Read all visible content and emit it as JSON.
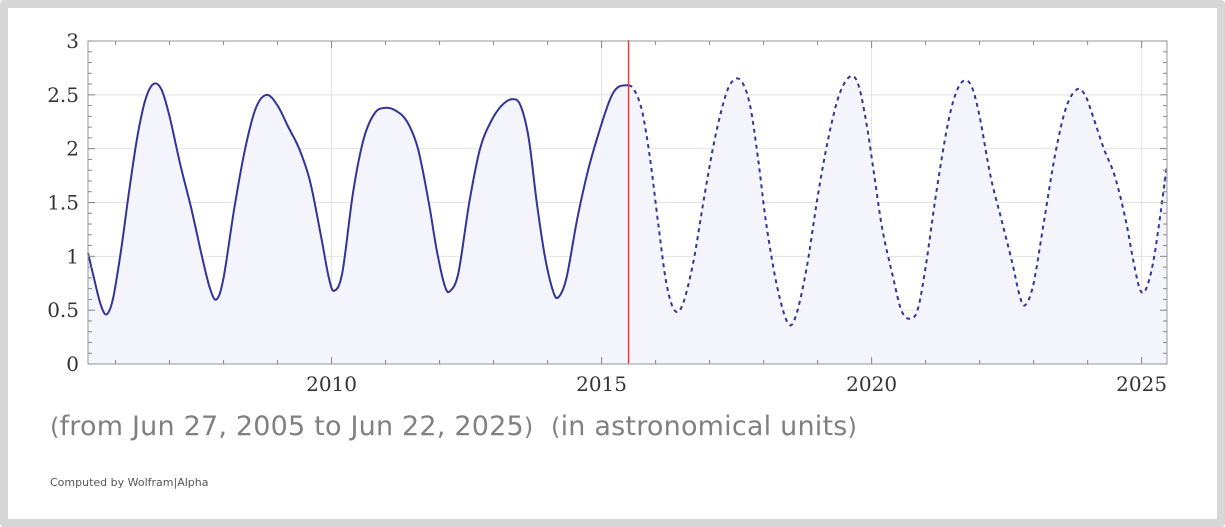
{
  "caption": {
    "range_open": "(",
    "range_text": "from Jun 27, 2005 to Jun 22, 2025",
    "range_close": ")",
    "units_open": "(",
    "units_text": "in astronomical units",
    "units_close": ")"
  },
  "credit": "Computed by Wolfram|Alpha",
  "colors": {
    "line": "#333399",
    "fill": "#f3f4fc",
    "marker": "#e83c3c",
    "grid": "#e2e2e2",
    "frame": "#d6d6d6"
  },
  "chart_data": {
    "type": "line",
    "xlim": [
      2005.49,
      2025.47
    ],
    "ylim": [
      0,
      3
    ],
    "x_ticks": [
      {
        "value": 2010,
        "label": "2010"
      },
      {
        "value": 2015,
        "label": "2015"
      },
      {
        "value": 2020,
        "label": "2020"
      },
      {
        "value": 2025,
        "label": "2025"
      }
    ],
    "y_ticks": [
      {
        "value": 0,
        "label": "0"
      },
      {
        "value": 0.5,
        "label": "0.5"
      },
      {
        "value": 1,
        "label": "1"
      },
      {
        "value": 1.5,
        "label": "1.5"
      },
      {
        "value": 2,
        "label": "2"
      },
      {
        "value": 2.5,
        "label": "2.5"
      },
      {
        "value": 3,
        "label": "3"
      }
    ],
    "grid": true,
    "marker_x": 2015.5,
    "series": [
      {
        "style": "solid",
        "points": [
          [
            2005.49,
            1.03
          ],
          [
            2005.6,
            0.8
          ],
          [
            2005.72,
            0.56
          ],
          [
            2005.83,
            0.46
          ],
          [
            2005.95,
            0.6
          ],
          [
            2006.1,
            1.05
          ],
          [
            2006.25,
            1.6
          ],
          [
            2006.4,
            2.1
          ],
          [
            2006.55,
            2.45
          ],
          [
            2006.7,
            2.6
          ],
          [
            2006.85,
            2.55
          ],
          [
            2007.0,
            2.3
          ],
          [
            2007.2,
            1.85
          ],
          [
            2007.4,
            1.45
          ],
          [
            2007.6,
            1.0
          ],
          [
            2007.75,
            0.7
          ],
          [
            2007.87,
            0.6
          ],
          [
            2008.0,
            0.8
          ],
          [
            2008.2,
            1.45
          ],
          [
            2008.4,
            2.0
          ],
          [
            2008.6,
            2.38
          ],
          [
            2008.8,
            2.5
          ],
          [
            2009.0,
            2.4
          ],
          [
            2009.2,
            2.2
          ],
          [
            2009.4,
            2.0
          ],
          [
            2009.6,
            1.7
          ],
          [
            2009.8,
            1.2
          ],
          [
            2009.95,
            0.8
          ],
          [
            2010.05,
            0.68
          ],
          [
            2010.2,
            0.85
          ],
          [
            2010.4,
            1.6
          ],
          [
            2010.6,
            2.1
          ],
          [
            2010.8,
            2.33
          ],
          [
            2011.0,
            2.38
          ],
          [
            2011.2,
            2.35
          ],
          [
            2011.4,
            2.25
          ],
          [
            2011.6,
            2.0
          ],
          [
            2011.8,
            1.5
          ],
          [
            2011.95,
            1.05
          ],
          [
            2012.1,
            0.72
          ],
          [
            2012.2,
            0.68
          ],
          [
            2012.35,
            0.85
          ],
          [
            2012.55,
            1.5
          ],
          [
            2012.75,
            2.0
          ],
          [
            2012.95,
            2.25
          ],
          [
            2013.15,
            2.4
          ],
          [
            2013.35,
            2.46
          ],
          [
            2013.5,
            2.4
          ],
          [
            2013.65,
            2.1
          ],
          [
            2013.8,
            1.5
          ],
          [
            2013.95,
            1.0
          ],
          [
            2014.1,
            0.68
          ],
          [
            2014.2,
            0.62
          ],
          [
            2014.35,
            0.8
          ],
          [
            2014.55,
            1.35
          ],
          [
            2014.75,
            1.8
          ],
          [
            2014.95,
            2.15
          ],
          [
            2015.15,
            2.45
          ],
          [
            2015.3,
            2.57
          ],
          [
            2015.5,
            2.59
          ]
        ]
      },
      {
        "style": "dashed",
        "points": [
          [
            2015.5,
            2.59
          ],
          [
            2015.6,
            2.55
          ],
          [
            2015.75,
            2.35
          ],
          [
            2015.9,
            1.9
          ],
          [
            2016.05,
            1.3
          ],
          [
            2016.2,
            0.75
          ],
          [
            2016.35,
            0.5
          ],
          [
            2016.5,
            0.55
          ],
          [
            2016.7,
            0.95
          ],
          [
            2016.9,
            1.55
          ],
          [
            2017.1,
            2.1
          ],
          [
            2017.3,
            2.5
          ],
          [
            2017.45,
            2.64
          ],
          [
            2017.6,
            2.62
          ],
          [
            2017.75,
            2.4
          ],
          [
            2017.9,
            1.9
          ],
          [
            2018.05,
            1.3
          ],
          [
            2018.25,
            0.72
          ],
          [
            2018.45,
            0.38
          ],
          [
            2018.6,
            0.45
          ],
          [
            2018.8,
            0.9
          ],
          [
            2019.0,
            1.55
          ],
          [
            2019.2,
            2.1
          ],
          [
            2019.4,
            2.5
          ],
          [
            2019.6,
            2.67
          ],
          [
            2019.75,
            2.6
          ],
          [
            2019.9,
            2.25
          ],
          [
            2020.05,
            1.75
          ],
          [
            2020.2,
            1.25
          ],
          [
            2020.4,
            0.8
          ],
          [
            2020.55,
            0.5
          ],
          [
            2020.7,
            0.42
          ],
          [
            2020.85,
            0.5
          ],
          [
            2021.0,
            0.9
          ],
          [
            2021.2,
            1.6
          ],
          [
            2021.4,
            2.2
          ],
          [
            2021.55,
            2.5
          ],
          [
            2021.7,
            2.63
          ],
          [
            2021.85,
            2.58
          ],
          [
            2022.0,
            2.3
          ],
          [
            2022.2,
            1.75
          ],
          [
            2022.4,
            1.35
          ],
          [
            2022.6,
            0.95
          ],
          [
            2022.75,
            0.62
          ],
          [
            2022.85,
            0.55
          ],
          [
            2023.0,
            0.75
          ],
          [
            2023.2,
            1.35
          ],
          [
            2023.4,
            1.95
          ],
          [
            2023.6,
            2.38
          ],
          [
            2023.8,
            2.55
          ],
          [
            2023.95,
            2.5
          ],
          [
            2024.1,
            2.3
          ],
          [
            2024.3,
            2.0
          ],
          [
            2024.5,
            1.75
          ],
          [
            2024.7,
            1.35
          ],
          [
            2024.85,
            0.95
          ],
          [
            2024.98,
            0.68
          ],
          [
            2025.1,
            0.72
          ],
          [
            2025.25,
            1.05
          ],
          [
            2025.47,
            1.85
          ]
        ]
      }
    ]
  }
}
